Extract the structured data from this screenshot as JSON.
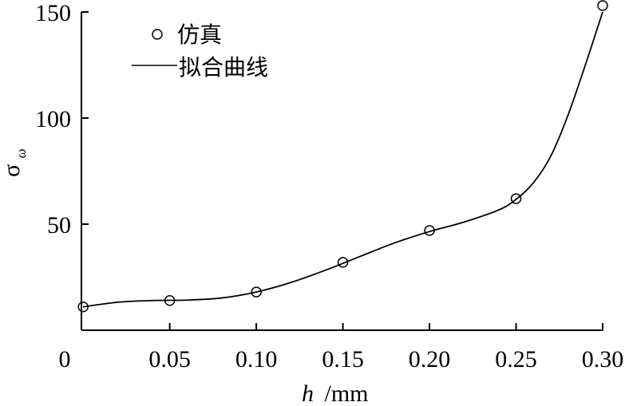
{
  "chart_data": {
    "type": "scatter",
    "title": "",
    "xlabel_var": "h",
    "xlabel_unit": "/mm",
    "ylabel_var": "σ",
    "ylabel_sub": "ω",
    "xlim": [
      -0.001,
      0.3
    ],
    "ylim": [
      0,
      150
    ],
    "xticks": [
      0.05,
      0.1,
      0.15,
      0.2,
      0.25,
      0.3
    ],
    "xtick_labels": [
      "0.05",
      "0.10",
      "0.15",
      "0.20",
      "0.25",
      "0.30"
    ],
    "x_origin_label": "0",
    "yticks": [
      50,
      100,
      150
    ],
    "ytick_labels": [
      "50",
      "100",
      "150"
    ],
    "grid": false,
    "legend_position": "top-left",
    "series": [
      {
        "name": "仿真",
        "kind": "markers",
        "marker": "open-circle",
        "x": [
          0.0,
          0.05,
          0.1,
          0.15,
          0.2,
          0.25,
          0.3
        ],
        "y": [
          11,
          14,
          18,
          32,
          47,
          62,
          153
        ]
      },
      {
        "name": "拟合曲线",
        "kind": "line",
        "x": [
          0.0,
          0.02,
          0.04,
          0.06,
          0.08,
          0.1,
          0.12,
          0.14,
          0.16,
          0.18,
          0.2,
          0.22,
          0.24,
          0.25,
          0.26,
          0.27,
          0.28,
          0.29,
          0.3
        ],
        "y": [
          11,
          13.2,
          14.0,
          14.2,
          15.2,
          18,
          22.5,
          28.3,
          34.8,
          41.2,
          46.5,
          51.0,
          56.7,
          61.7,
          69.5,
          82,
          101.4,
          125,
          150
        ]
      }
    ]
  }
}
